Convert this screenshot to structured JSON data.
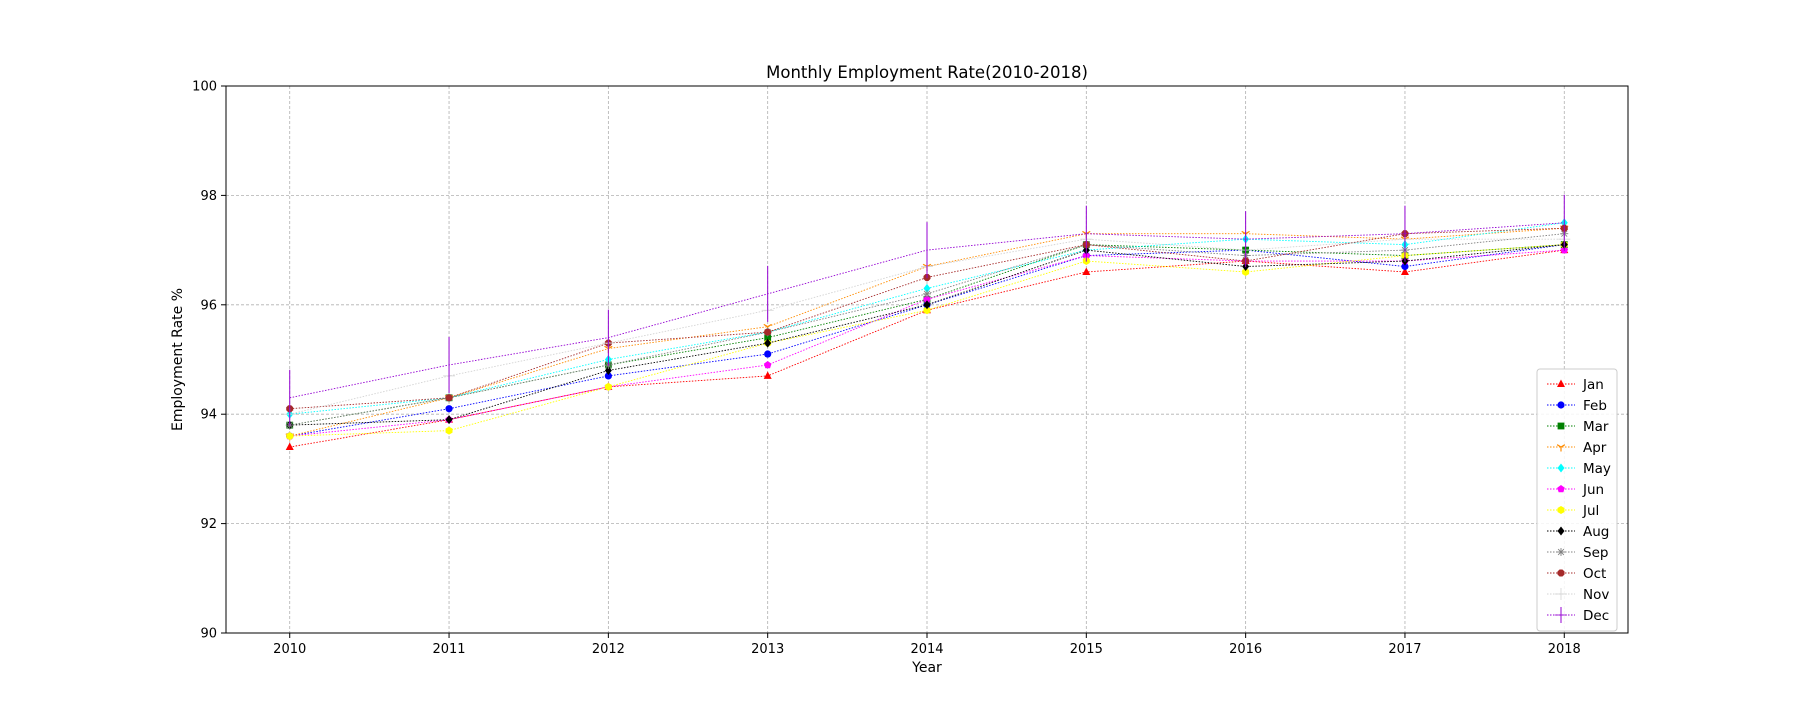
{
  "chart_data": {
    "type": "line",
    "title": "Monthly Employment Rate(2010-2018)",
    "xlabel": "Year",
    "ylabel": "Employment Rate %",
    "x": [
      2010,
      2011,
      2012,
      2013,
      2014,
      2015,
      2016,
      2017,
      2018
    ],
    "ylim": [
      90,
      100
    ],
    "yticks": [
      90,
      92,
      94,
      96,
      98,
      100
    ],
    "grid": true,
    "legend_position": "lower-right",
    "series": [
      {
        "name": "Jan",
        "color": "#ff0000",
        "marker": "triangle-up",
        "values": [
          93.4,
          93.9,
          94.5,
          94.7,
          95.9,
          96.6,
          96.8,
          96.6,
          97.0
        ]
      },
      {
        "name": "Feb",
        "color": "#0000ff",
        "marker": "circle",
        "values": [
          93.6,
          94.1,
          94.7,
          95.1,
          96.0,
          96.9,
          97.0,
          96.7,
          97.1
        ]
      },
      {
        "name": "Mar",
        "color": "#008000",
        "marker": "square",
        "values": [
          93.8,
          94.3,
          94.9,
          95.4,
          96.1,
          97.1,
          97.0,
          96.9,
          97.1
        ]
      },
      {
        "name": "Apr",
        "color": "#ff8c00",
        "marker": "tri-down",
        "values": [
          93.6,
          94.3,
          95.2,
          95.6,
          96.7,
          97.3,
          97.3,
          97.2,
          97.4
        ]
      },
      {
        "name": "May",
        "color": "#00ffff",
        "marker": "diamond",
        "values": [
          94.0,
          94.3,
          95.0,
          95.5,
          96.3,
          97.0,
          97.2,
          97.1,
          97.5
        ]
      },
      {
        "name": "Jun",
        "color": "#ff00ff",
        "marker": "pentagon",
        "values": [
          93.6,
          93.9,
          94.5,
          94.9,
          96.1,
          96.9,
          96.8,
          96.8,
          97.0
        ]
      },
      {
        "name": "Jul",
        "color": "#ffff00",
        "marker": "hexagon",
        "values": [
          93.6,
          93.7,
          94.5,
          95.3,
          95.9,
          96.8,
          96.6,
          96.9,
          97.1
        ]
      },
      {
        "name": "Aug",
        "color": "#000000",
        "marker": "diamond",
        "values": [
          93.8,
          93.9,
          94.8,
          95.3,
          96.0,
          97.0,
          96.7,
          96.8,
          97.1
        ]
      },
      {
        "name": "Sep",
        "color": "#808080",
        "marker": "star",
        "values": [
          93.8,
          94.3,
          94.9,
          95.5,
          96.2,
          97.1,
          96.9,
          97.0,
          97.3
        ]
      },
      {
        "name": "Oct",
        "color": "#a52a2a",
        "marker": "octagon",
        "values": [
          94.1,
          94.3,
          95.3,
          95.5,
          96.5,
          97.1,
          96.8,
          97.3,
          97.4
        ]
      },
      {
        "name": "Nov",
        "color": "#d3d3d3",
        "marker": "plus",
        "values": [
          94.0,
          94.7,
          95.3,
          95.9,
          96.7,
          97.2,
          97.0,
          97.2,
          97.2
        ]
      },
      {
        "name": "Dec",
        "color": "#9400d3",
        "marker": "vline",
        "values": [
          94.3,
          94.9,
          95.4,
          96.2,
          97.0,
          97.3,
          97.2,
          97.3,
          97.5
        ]
      }
    ]
  }
}
